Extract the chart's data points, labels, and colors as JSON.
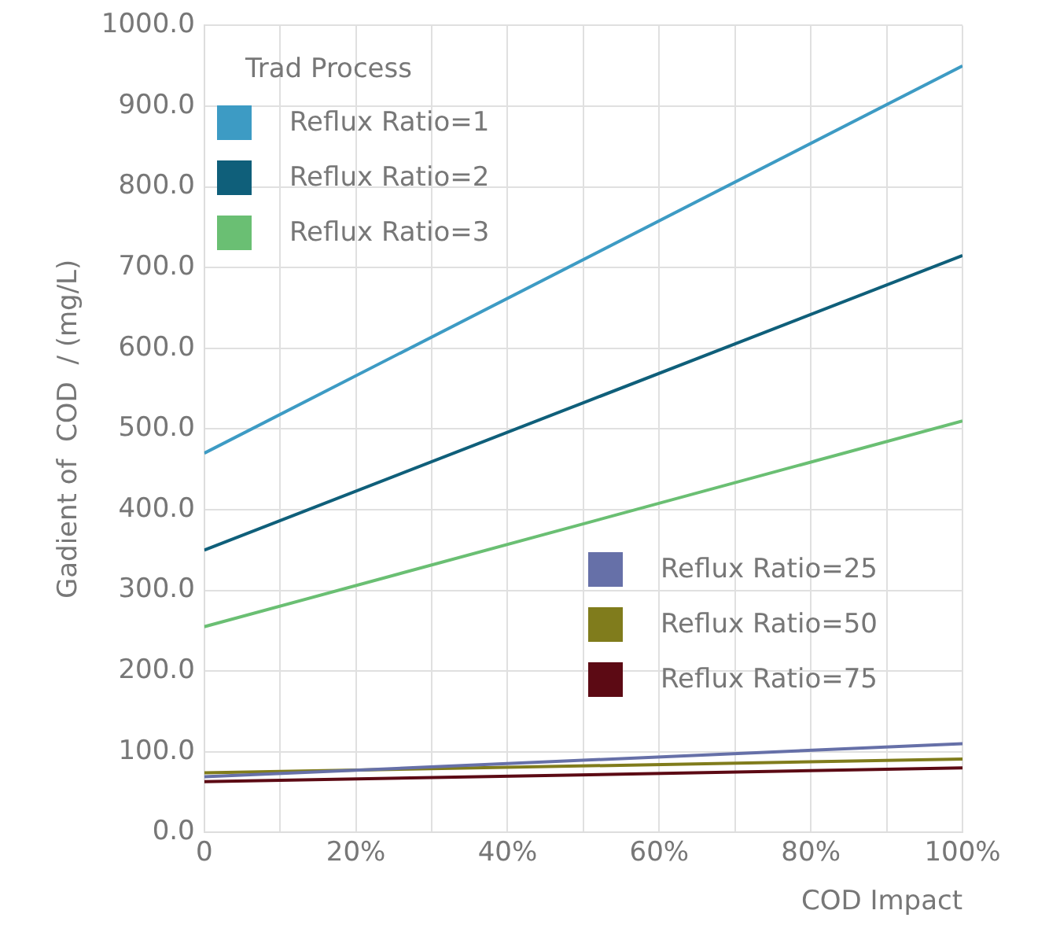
{
  "chart_data": {
    "type": "line",
    "xlabel": "COD Impact",
    "ylabel": "Gadient of  COD  / (mg/L)",
    "legend_title": "Trad Process",
    "legend": "top left",
    "grid": true,
    "marker": "none",
    "line_style": "solid",
    "x": [
      0,
      1
    ],
    "xlim": [
      0,
      1
    ],
    "xticks": [
      0,
      {
        "value": 0.1,
        "label": null
      },
      {
        "value": 0.2,
        "label": "20%"
      },
      {
        "value": 0.3,
        "label": null
      },
      {
        "value": 0.4,
        "label": "40%"
      },
      {
        "value": 0.5,
        "label": null
      },
      {
        "value": 0.6,
        "label": "60%"
      },
      {
        "value": 0.7,
        "label": null
      },
      {
        "value": 0.8,
        "label": "80%"
      },
      {
        "value": 0.9,
        "label": null
      },
      {
        "value": 1,
        "label": "100%"
      }
    ],
    "ylim": [
      0,
      1000
    ],
    "yticks": [
      {
        "value": 0,
        "label": "0.0"
      },
      {
        "value": 100,
        "label": "100.0"
      },
      {
        "value": 200,
        "label": "200.0"
      },
      {
        "value": 300,
        "label": "300.0"
      },
      {
        "value": 400,
        "label": "400.0"
      },
      {
        "value": 500,
        "label": "500.0"
      },
      {
        "value": 600,
        "label": "600.0"
      },
      {
        "value": 700,
        "label": "700.0"
      },
      {
        "value": 800,
        "label": "800.0"
      },
      {
        "value": 900,
        "label": "900.0"
      },
      {
        "value": 1000,
        "label": "1000.0"
      }
    ],
    "series": [
      {
        "name": "Reflux Ratio=1",
        "color": "#3d9bc4",
        "values": [
          470,
          950
        ]
      },
      {
        "name": "Reflux Ratio=2",
        "color": "#0f5f7a",
        "values": [
          350,
          715
        ]
      },
      {
        "name": "Reflux Ratio=3",
        "color": "#6abf73",
        "values": [
          255,
          510
        ]
      },
      {
        "name": "Reflux Ratio=25",
        "color": "#6670a8",
        "values": [
          69,
          110
        ]
      },
      {
        "name": "Reflux Ratio=50",
        "color": "#807c1c",
        "values": [
          74,
          91
        ]
      },
      {
        "name": "Reflux Ratio=75",
        "color": "#5c0a14",
        "values": [
          63,
          80
        ]
      }
    ]
  }
}
